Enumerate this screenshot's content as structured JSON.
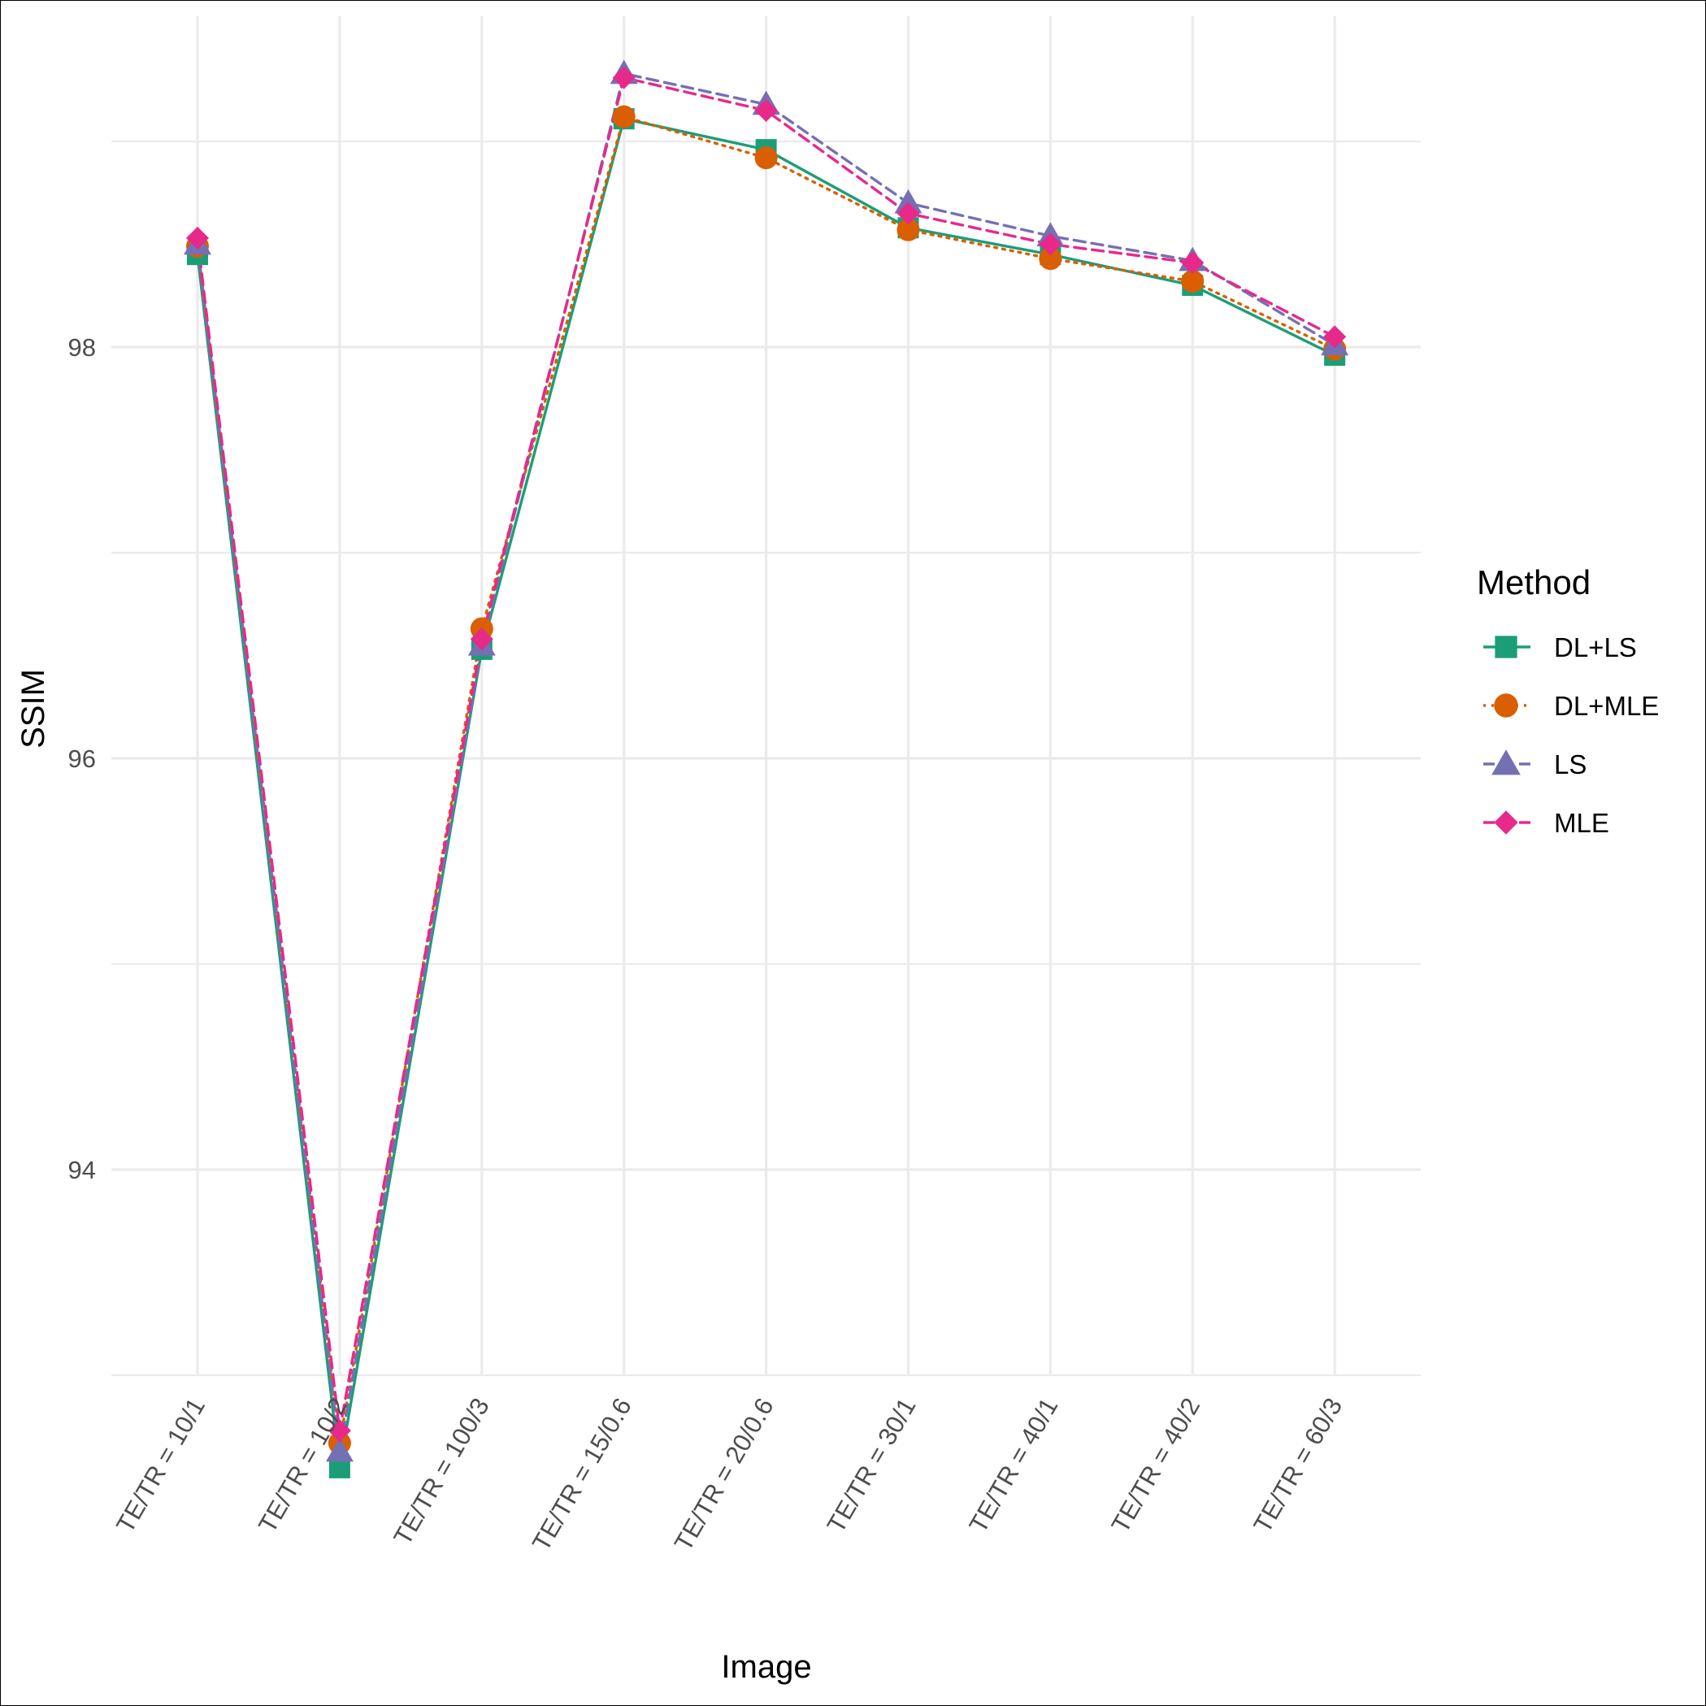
{
  "chart_data": {
    "type": "line",
    "title": "",
    "xlabel": "Image",
    "ylabel": "SSIM",
    "categories": [
      "TE/TR = 10/1",
      "TE/TR = 10/2",
      "TE/TR = 100/3",
      "TE/TR = 15/0.6",
      "TE/TR = 20/0.6",
      "TE/TR = 30/1",
      "TE/TR = 40/1",
      "TE/TR = 40/2",
      "TE/TR = 60/3"
    ],
    "ylim": [
      92.0,
      99.7
    ],
    "yticks": [
      94,
      96,
      98
    ],
    "grid": true,
    "legend": {
      "title": "Method",
      "position": "right"
    },
    "series": [
      {
        "name": "DL+LS",
        "color": "#1b9e77",
        "marker": "square",
        "dash": "solid",
        "values": [
          98.45,
          92.55,
          96.53,
          99.11,
          98.96,
          98.58,
          98.45,
          98.3,
          97.96
        ]
      },
      {
        "name": "DL+MLE",
        "color": "#d95f02",
        "marker": "circle",
        "dash": "dotted",
        "values": [
          98.49,
          92.67,
          96.63,
          99.12,
          98.92,
          98.57,
          98.43,
          98.32,
          97.99
        ]
      },
      {
        "name": "LS",
        "color": "#7570b3",
        "marker": "triangle",
        "dash": "dashed",
        "values": [
          98.5,
          92.63,
          96.55,
          99.33,
          99.18,
          98.7,
          98.54,
          98.42,
          98.01
        ]
      },
      {
        "name": "MLE",
        "color": "#e7298a",
        "marker": "diamond",
        "dash": "dashed",
        "values": [
          98.53,
          92.73,
          96.58,
          99.31,
          99.15,
          98.65,
          98.5,
          98.41,
          98.05
        ]
      }
    ]
  }
}
